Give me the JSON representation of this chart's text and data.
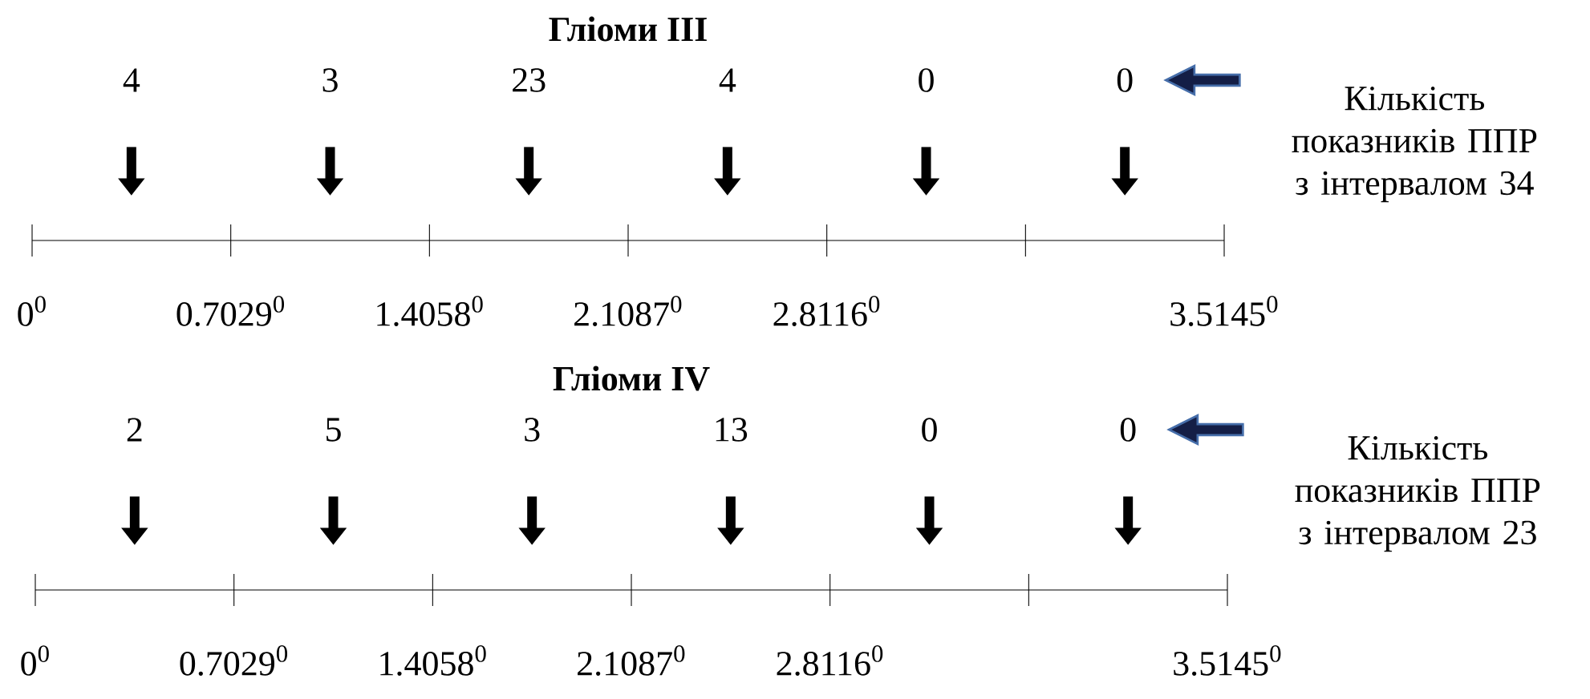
{
  "chart_data": [
    {
      "type": "other",
      "title": "Гліоми III",
      "categories": [
        null,
        null,
        null,
        null,
        null,
        null
      ],
      "values": [
        4,
        3,
        23,
        4,
        0,
        0
      ],
      "data_labels": true,
      "annotations": [
        "Кількість показників ППР з інтервалом 34",
        "0$^{0}$",
        "0.7029$^{0}$",
        "1.4058$^{0}$",
        "2.1087$^{0}$",
        "2.8116$^{0}$",
        "3.5145$^{0}$"
      ]
    },
    {
      "type": "other",
      "title": "Гліоми IV",
      "categories": [
        null,
        null,
        null,
        null,
        null,
        null
      ],
      "values": [
        2,
        5,
        3,
        13,
        0,
        0
      ],
      "data_labels": true,
      "annotations": [
        "Кількість показників ППР з інтервалом 23",
        "0$^{0}$",
        "0.7029$^{0}$",
        "1.4058$^{0}$",
        "2.1087$^{0}$",
        "2.8116$^{0}$",
        "3.5145$^{0}$"
      ]
    }
  ]
}
